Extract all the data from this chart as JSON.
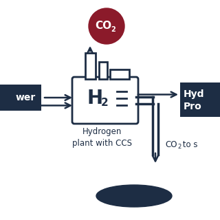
{
  "bg_color": "#ffffff",
  "dark_color": "#1d2d44",
  "co2_circle_color": "#8b1a2a",
  "co2_text_color": "#ffffff",
  "figsize": [
    3.2,
    3.2
  ],
  "dpi": 100,
  "label_plant": "Hydrogen\nplant with CCS",
  "label_power": "wer",
  "label_hydro_line1": "Hyd",
  "label_hydro_line2": "Pro"
}
